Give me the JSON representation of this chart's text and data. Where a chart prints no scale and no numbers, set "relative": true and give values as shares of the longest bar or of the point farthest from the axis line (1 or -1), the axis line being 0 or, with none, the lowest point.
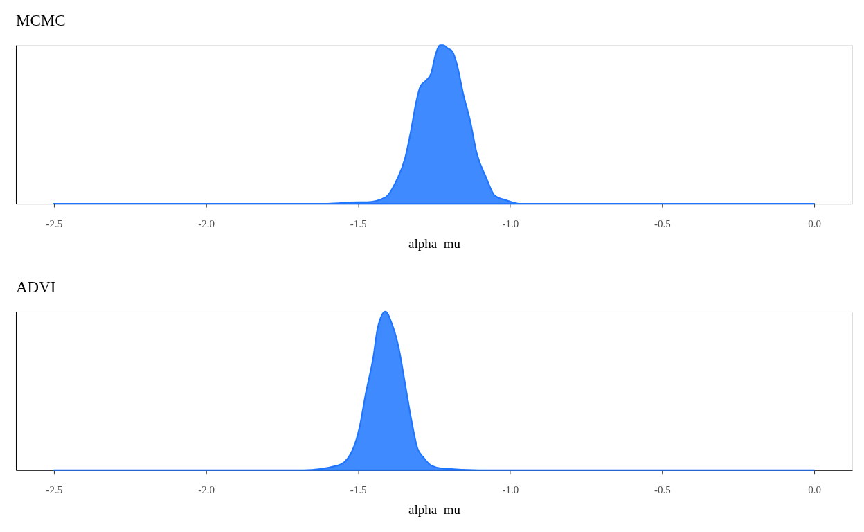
{
  "chart_data": [
    {
      "type": "area",
      "title": "MCMC",
      "xlabel": "alpha_mu",
      "relative": true,
      "color": "#1f75ff",
      "x": [
        -2.5,
        -1.6,
        -1.5,
        -1.47,
        -1.41,
        -1.375,
        -1.345,
        -1.325,
        -1.31,
        -1.295,
        -1.275,
        -1.26,
        -1.245,
        -1.23,
        -1.22,
        -1.205,
        -1.19,
        -1.175,
        -1.155,
        -1.13,
        -1.11,
        -1.08,
        -1.05,
        -1.01,
        -0.97,
        -0.9,
        0.0
      ],
      "values": [
        0,
        0,
        0.01,
        0.01,
        0.04,
        0.14,
        0.29,
        0.47,
        0.63,
        0.74,
        0.78,
        0.82,
        0.94,
        1,
        1,
        0.98,
        0.96,
        0.88,
        0.7,
        0.51,
        0.32,
        0.17,
        0.05,
        0.02,
        0,
        0,
        0
      ],
      "xlim": [
        -2.625,
        0.125
      ],
      "xticks": [
        -2.5,
        {
          "value": -2,
          "label": "-2.0"
        },
        -1.5,
        {
          "value": -1,
          "label": "-1.0"
        },
        -0.5,
        {
          "value": 0,
          "label": "0.0"
        }
      ]
    },
    {
      "type": "area",
      "title": "ADVI",
      "xlabel": "alpha_mu",
      "relative": true,
      "color": "#1f75ff",
      "x": [
        -2.5,
        -1.68,
        -1.565,
        -1.525,
        -1.495,
        -1.475,
        -1.45,
        -1.435,
        -1.41,
        -1.39,
        -1.365,
        -1.345,
        -1.325,
        -1.305,
        -1.285,
        -1.26,
        -1.22,
        -1.1,
        0.0
      ],
      "values": [
        0,
        0,
        0.03,
        0.1,
        0.27,
        0.48,
        0.71,
        0.9,
        1,
        0.93,
        0.76,
        0.54,
        0.32,
        0.14,
        0.08,
        0.03,
        0.01,
        0,
        0
      ],
      "xlim": [
        -2.625,
        0.125
      ],
      "xticks": [
        -2.5,
        {
          "value": -2,
          "label": "-2.0"
        },
        -1.5,
        {
          "value": -1,
          "label": "-1.0"
        },
        -0.5,
        {
          "value": 0,
          "label": "0.0"
        }
      ]
    }
  ]
}
